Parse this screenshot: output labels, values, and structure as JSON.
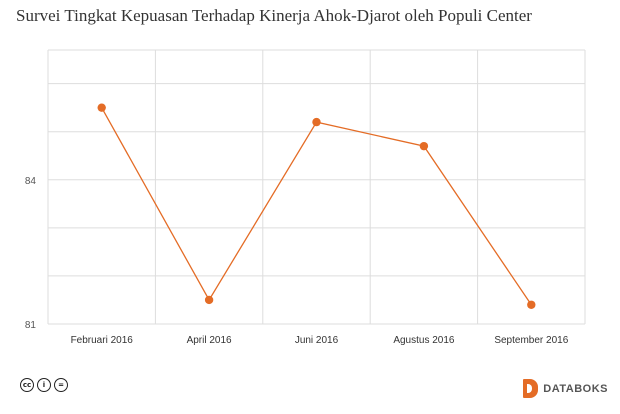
{
  "chart_data": {
    "type": "line",
    "title": "Survei Tingkat Kepuasan Terhadap Kinerja Ahok-Djarot oleh Populi Center",
    "categories": [
      "Februari 2016",
      "April 2016",
      "Juni 2016",
      "Agustus 2016",
      "September 2016"
    ],
    "series": [
      {
        "values": [
          85.5,
          81.5,
          85.2,
          84.7,
          81.4
        ],
        "color": "#e46c26"
      }
    ],
    "y_ticks": [
      81,
      84
    ],
    "ylim": [
      81,
      86.7
    ],
    "grid": true,
    "xlabel": "",
    "ylabel": ""
  },
  "footer": {
    "license_icons": [
      "cc-icon",
      "by-icon",
      "nd-icon"
    ],
    "cc_glyphs": [
      "cc",
      "i",
      "="
    ],
    "brand_name": "DATABOKS",
    "brand_color": "#e46c26"
  }
}
